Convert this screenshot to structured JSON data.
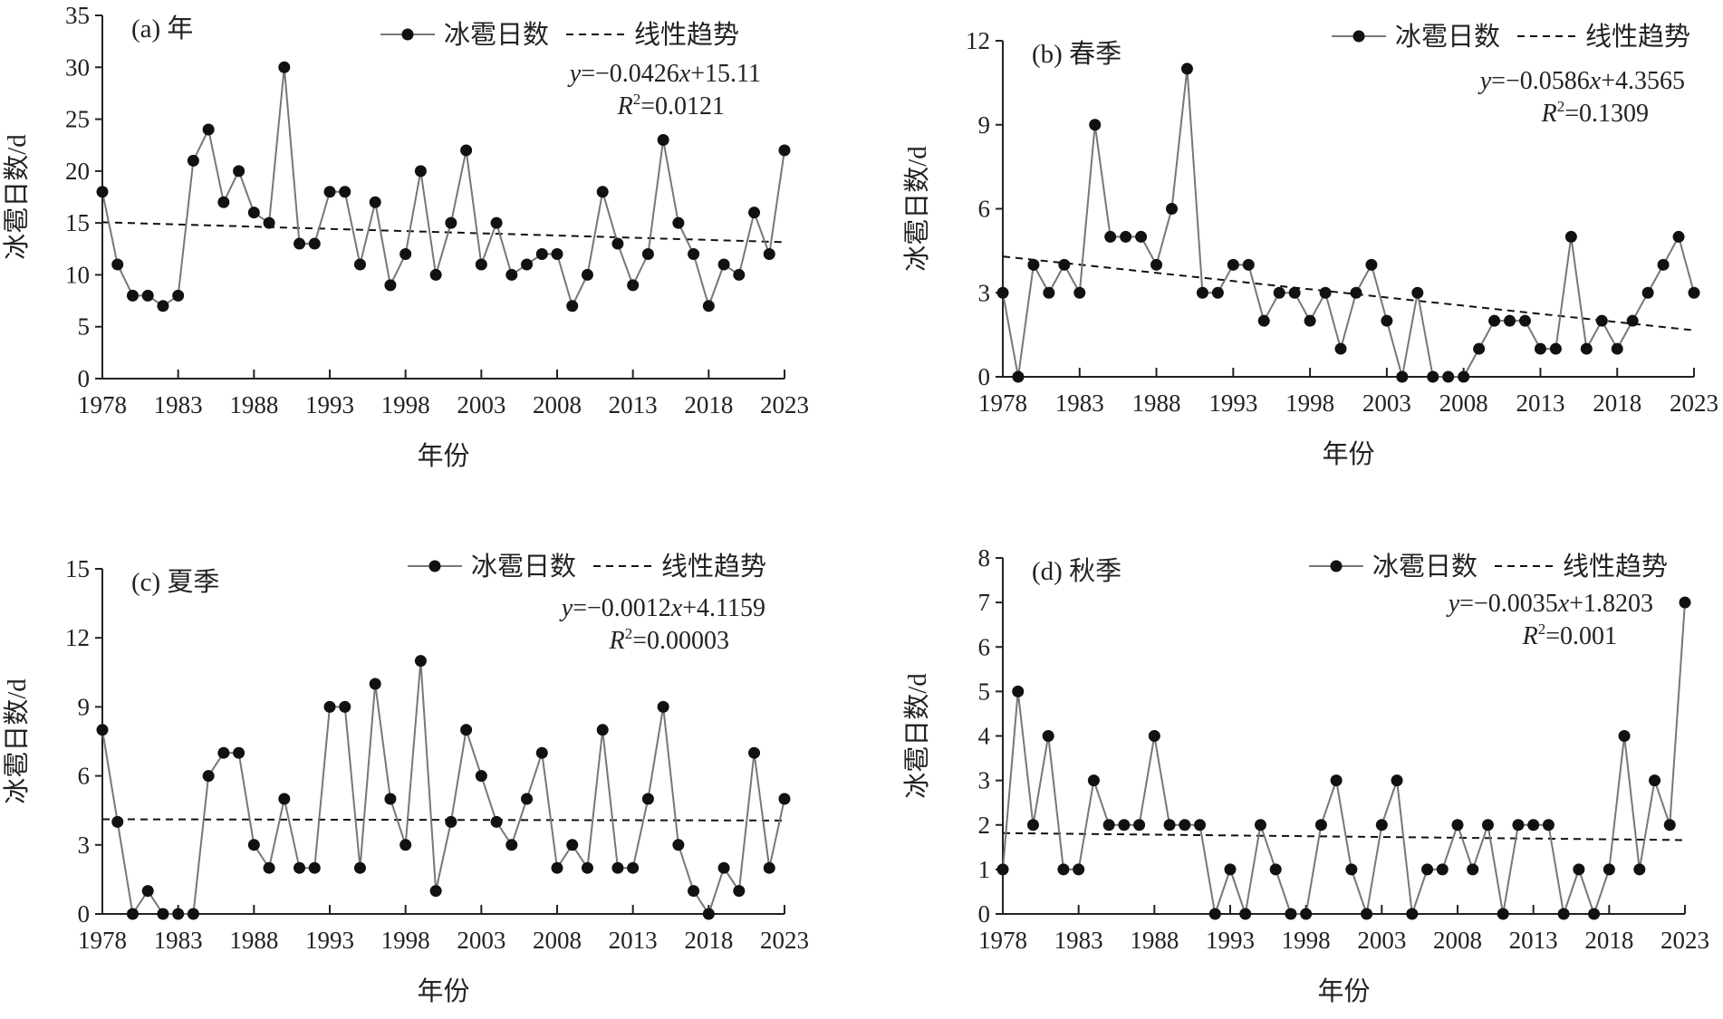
{
  "chart_data": [
    {
      "type": "line",
      "title": "(a) 年",
      "xlabel": "年份",
      "ylabel": "冰雹日数/d",
      "x": [
        1978,
        1979,
        1980,
        1981,
        1982,
        1983,
        1984,
        1985,
        1986,
        1987,
        1988,
        1989,
        1990,
        1991,
        1992,
        1993,
        1994,
        1995,
        1996,
        1997,
        1998,
        1999,
        2000,
        2001,
        2002,
        2003,
        2004,
        2005,
        2006,
        2007,
        2008,
        2009,
        2010,
        2011,
        2012,
        2013,
        2014,
        2015,
        2016,
        2017,
        2018,
        2019,
        2020,
        2021,
        2022,
        2023
      ],
      "xticks": [
        "1978",
        "1983",
        "1988",
        "1993",
        "1998",
        "2003",
        "2008",
        "2013",
        "2018",
        "2023"
      ],
      "ylim": [
        0,
        35
      ],
      "yticks": [
        "0",
        "5",
        "10",
        "15",
        "20",
        "25",
        "30",
        "35"
      ],
      "series": [
        {
          "name": "冰雹日数",
          "values": [
            18,
            11,
            8,
            8,
            7,
            8,
            21,
            24,
            17,
            20,
            16,
            15,
            30,
            13,
            13,
            18,
            18,
            11,
            17,
            9,
            12,
            20,
            10,
            15,
            22,
            11,
            15,
            10,
            11,
            12,
            12,
            7,
            10,
            18,
            13,
            9,
            12,
            23,
            15,
            12,
            7,
            11,
            10,
            16,
            12,
            22
          ]
        }
      ],
      "trend": {
        "name": "线性趋势",
        "slope": -0.0426,
        "intercept": 15.11
      },
      "equation": {
        "y_label": "y",
        "eq_rest": "=−0.0426",
        "x_label": "x",
        "eq_tail": "+15.11",
        "r_label": "R",
        "r_sup": "2",
        "r_value": "=0.0121"
      }
    },
    {
      "type": "line",
      "title": "(b) 春季",
      "xlabel": "年份",
      "ylabel": "冰雹日数/d",
      "xticks": [
        "1978",
        "1983",
        "1988",
        "1993",
        "1998",
        "2003",
        "2008",
        "2013",
        "2018",
        "2023"
      ],
      "ylim": [
        0,
        12
      ],
      "yticks": [
        "0",
        "3",
        "6",
        "9",
        "12"
      ],
      "series": [
        {
          "name": "冰雹日数",
          "values": [
            3,
            0,
            4,
            3,
            4,
            3,
            9,
            5,
            5,
            5,
            4,
            6,
            11,
            3,
            3,
            4,
            4,
            2,
            3,
            3,
            2,
            3,
            1,
            3,
            4,
            2,
            0,
            3,
            0,
            0,
            0,
            1,
            2,
            2,
            2,
            1,
            1,
            5,
            1,
            2,
            1,
            2,
            3,
            4,
            5,
            3
          ]
        }
      ],
      "trend": {
        "name": "线性趋势",
        "slope": -0.0586,
        "intercept": 4.3565
      },
      "equation": {
        "y_label": "y",
        "eq_rest": "=−0.0586",
        "x_label": "x",
        "eq_tail": "+4.3565",
        "r_label": "R",
        "r_sup": "2",
        "r_value": "=0.1309"
      }
    },
    {
      "type": "line",
      "title": "(c) 夏季",
      "xlabel": "年份",
      "ylabel": "冰雹日数/d",
      "xticks": [
        "1978",
        "1983",
        "1988",
        "1993",
        "1998",
        "2003",
        "2008",
        "2013",
        "2018",
        "2023"
      ],
      "ylim": [
        0,
        15
      ],
      "yticks": [
        "0",
        "3",
        "6",
        "9",
        "12",
        "15"
      ],
      "series": [
        {
          "name": "冰雹日数",
          "values": [
            8,
            4,
            0,
            1,
            0,
            0,
            0,
            6,
            7,
            7,
            3,
            2,
            5,
            2,
            2,
            9,
            9,
            2,
            10,
            5,
            3,
            11,
            1,
            4,
            8,
            6,
            4,
            3,
            5,
            7,
            2,
            3,
            2,
            8,
            2,
            2,
            5,
            9,
            3,
            1,
            0,
            2,
            1,
            7,
            2,
            5
          ]
        }
      ],
      "trend": {
        "name": "线性趋势",
        "slope": -0.0012,
        "intercept": 4.1159
      },
      "equation": {
        "y_label": "y",
        "eq_rest": "=−0.0012",
        "x_label": "x",
        "eq_tail": "+4.1159",
        "r_label": "R",
        "r_sup": "2",
        "r_value": "=0.00003"
      }
    },
    {
      "type": "line",
      "title": "(d) 秋季",
      "xlabel": "年份",
      "ylabel": "冰雹日数/d",
      "xticks": [
        "1978",
        "1983",
        "1988",
        "1993",
        "1998",
        "2003",
        "2008",
        "2013",
        "2018",
        "2023"
      ],
      "ylim": [
        0,
        8
      ],
      "yticks": [
        "0",
        "1",
        "2",
        "3",
        "4",
        "5",
        "6",
        "7",
        "8"
      ],
      "series": [
        {
          "name": "冰雹日数",
          "values": [
            1,
            5,
            2,
            4,
            1,
            1,
            3,
            2,
            2,
            2,
            4,
            2,
            2,
            2,
            0,
            1,
            0,
            2,
            1,
            0,
            0,
            2,
            3,
            1,
            0,
            2,
            3,
            0,
            1,
            1,
            2,
            1,
            2,
            0,
            2,
            2,
            2,
            0,
            1,
            0,
            1,
            4,
            1,
            3,
            2,
            7
          ]
        }
      ],
      "trend": {
        "name": "线性趋势",
        "slope": -0.0035,
        "intercept": 1.8203
      },
      "equation": {
        "y_label": "y",
        "eq_rest": "=−0.0035",
        "x_label": "x",
        "eq_tail": "+1.8203",
        "r_label": "R",
        "r_sup": "2",
        "r_value": "=0.001"
      }
    }
  ],
  "colors": {
    "series_line": "#777777",
    "marker": "#111111",
    "trend": "#111111",
    "axis": "#222222"
  }
}
